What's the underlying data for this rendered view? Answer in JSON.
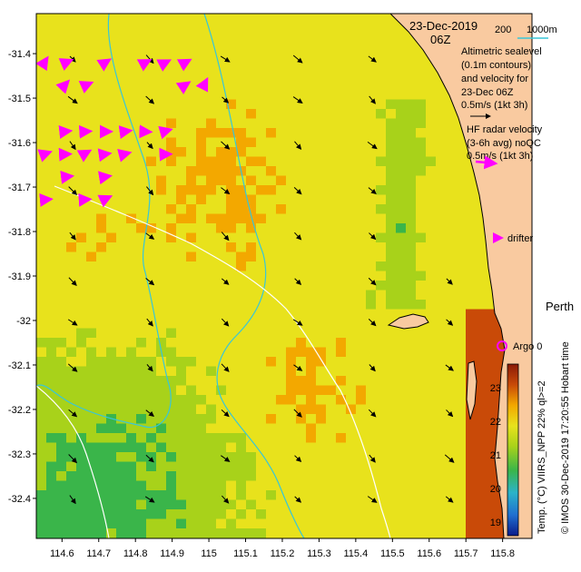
{
  "header": {
    "date": "23-Dec-2019",
    "time": "06Z",
    "depth_label_1": "200",
    "depth_label_2": "1000m"
  },
  "legend": {
    "altimetric_lines": [
      "Altimetric sealevel",
      "(0.1m contours)",
      "and velocity for",
      "23-Dec 06Z",
      "0.5m/s (1kt 3h)"
    ],
    "radar_lines": [
      "HF radar velocity",
      "(3-6h avg) noQC",
      "0.5m/s (1kt 3h)"
    ],
    "drifter": "drifter",
    "argo": "Argo 0",
    "city": "Perth"
  },
  "colorbar": {
    "ticks": [
      "23",
      "22",
      "21",
      "20",
      "19"
    ],
    "caption": "Temp. (°C) VIIRS_NPP 22% ql>=2",
    "stops": [
      "#0a1a8a",
      "#1f6fd0",
      "#2bb3c9",
      "#3ab54a",
      "#a8d21a",
      "#e8e21c",
      "#f3a800",
      "#c94a08",
      "#8a1a08"
    ]
  },
  "credit": "© IMOS 30-Dec-2019 17:20:55 Hobart time",
  "axes": {
    "x_ticks": [
      "114.6",
      "114.7",
      "114.8",
      "114.9",
      "115",
      "115.1",
      "115.2",
      "115.3",
      "115.4",
      "115.5",
      "115.6",
      "115.7",
      "115.8"
    ],
    "y_ticks": [
      "-31.4",
      "-31.5",
      "-31.6",
      "-31.7",
      "-31.8",
      "-31.9",
      "-32",
      "-32.1",
      "-32.2",
      "-32.3",
      "-32.4"
    ],
    "xlim": [
      114.53,
      115.88
    ],
    "ylim": [
      -32.49,
      -31.31
    ]
  },
  "colors": {
    "land": "#f9caa0",
    "vector_altimetry": "#000000",
    "vector_radar": "#ff00ff",
    "contour_200m": "#38c6d8",
    "contour_1000m": "#ffffff"
  }
}
